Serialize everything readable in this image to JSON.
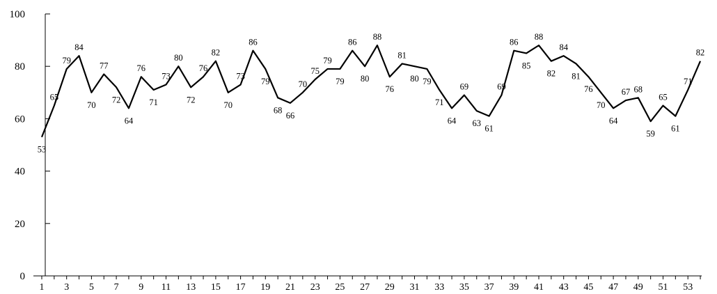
{
  "chart_data": {
    "type": "line",
    "title": "",
    "xlabel": "",
    "ylabel": "",
    "x": [
      1,
      2,
      3,
      4,
      5,
      6,
      7,
      8,
      9,
      10,
      11,
      12,
      13,
      14,
      15,
      16,
      17,
      18,
      19,
      20,
      21,
      22,
      23,
      24,
      25,
      26,
      27,
      28,
      29,
      30,
      31,
      32,
      33,
      34,
      35,
      36,
      37,
      38,
      39,
      40,
      41,
      42,
      43,
      44,
      45,
      46,
      47,
      48,
      49,
      50,
      51,
      52,
      53,
      54
    ],
    "x_tick_labels": [
      "1",
      "3",
      "5",
      "7",
      "9",
      "11",
      "13",
      "15",
      "17",
      "19",
      "21",
      "23",
      "25",
      "27",
      "29",
      "31",
      "33",
      "35",
      "37",
      "39",
      "41",
      "43",
      "45",
      "47",
      "49",
      "51",
      "53"
    ],
    "y_tick_labels": [
      "0",
      "20",
      "40",
      "60",
      "80",
      "100"
    ],
    "ylim": [
      0,
      100
    ],
    "grid": false,
    "series": [
      {
        "values": [
          53,
          65,
          79,
          84,
          70,
          77,
          72,
          64,
          76,
          71,
          73,
          80,
          72,
          76,
          82,
          70,
          73,
          86,
          79,
          68,
          66,
          70,
          75,
          79,
          79,
          86,
          80,
          88,
          76,
          81,
          80,
          79,
          71,
          64,
          69,
          63,
          61,
          69,
          86,
          85,
          88,
          82,
          84,
          81,
          76,
          70,
          64,
          67,
          68,
          59,
          65,
          61,
          71,
          82
        ],
        "color": "#000000"
      }
    ]
  }
}
